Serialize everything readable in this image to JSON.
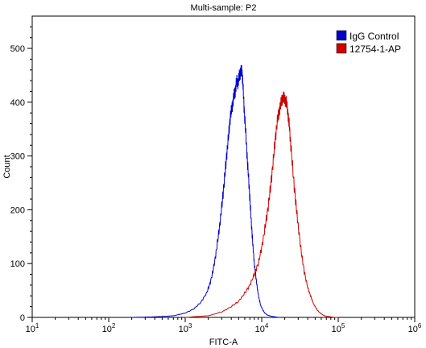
{
  "chart_data": {
    "type": "line",
    "title": "Multi-sample: P2",
    "xlabel": "FITC-A",
    "ylabel": "Count",
    "xscale": "log",
    "xlim": [
      10,
      1000000
    ],
    "ylim": [
      0,
      560
    ],
    "grid": false,
    "legend_position": "top-right",
    "x_ticks": [
      {
        "base": "10",
        "exp": "1",
        "value": 10
      },
      {
        "base": "10",
        "exp": "2",
        "value": 100
      },
      {
        "base": "10",
        "exp": "3",
        "value": 1000
      },
      {
        "base": "10",
        "exp": "4",
        "value": 10000
      },
      {
        "base": "10",
        "exp": "5",
        "value": 100000
      },
      {
        "base": "10",
        "exp": "6",
        "value": 1000000
      }
    ],
    "y_ticks": [
      {
        "label": "0",
        "value": 0
      },
      {
        "label": "100",
        "value": 100
      },
      {
        "label": "200",
        "value": 200
      },
      {
        "label": "300",
        "value": 300
      },
      {
        "label": "400",
        "value": 400
      },
      {
        "label": "500",
        "value": 500
      }
    ],
    "series": [
      {
        "name": "IgG Control",
        "color": "#0000cc",
        "x": [
          200,
          400,
          700,
          1000,
          1300,
          1600,
          1900,
          2100,
          2300,
          2500,
          2700,
          2900,
          3100,
          3300,
          3500,
          3700,
          3900,
          4100,
          4300,
          4500,
          4700,
          4900,
          5100,
          5300,
          5500,
          5700,
          5900,
          6200,
          6500,
          6800,
          7100,
          7400,
          7700,
          8000,
          8400,
          8800,
          9200,
          9700,
          10300,
          11000,
          12000,
          13500,
          15000,
          17000
        ],
        "y": [
          0,
          1,
          3,
          8,
          16,
          28,
          45,
          62,
          85,
          115,
          150,
          185,
          225,
          265,
          305,
          340,
          375,
          390,
          410,
          420,
          440,
          435,
          450,
          455,
          460,
          430,
          385,
          340,
          290,
          250,
          205,
          165,
          130,
          100,
          75,
          52,
          36,
          22,
          14,
          8,
          4,
          2,
          1,
          0
        ]
      },
      {
        "name": "12754-1-AP",
        "color": "#cc0000",
        "x": [
          1000,
          2000,
          3000,
          4000,
          5000,
          6000,
          7000,
          8000,
          9000,
          10000,
          11000,
          12000,
          13000,
          14000,
          15000,
          16000,
          17000,
          18000,
          19000,
          20000,
          21000,
          22000,
          23000,
          24000,
          26000,
          28000,
          30000,
          33000,
          36000,
          40000,
          44000,
          48000,
          53000,
          58000,
          64000,
          70000,
          80000,
          90000,
          100000
        ],
        "y": [
          0,
          3,
          10,
          20,
          30,
          45,
          60,
          80,
          100,
          130,
          165,
          200,
          240,
          285,
          330,
          365,
          385,
          400,
          410,
          405,
          400,
          380,
          355,
          320,
          260,
          210,
          170,
          120,
          85,
          55,
          38,
          24,
          14,
          8,
          4,
          2,
          1,
          0,
          0
        ]
      }
    ]
  }
}
